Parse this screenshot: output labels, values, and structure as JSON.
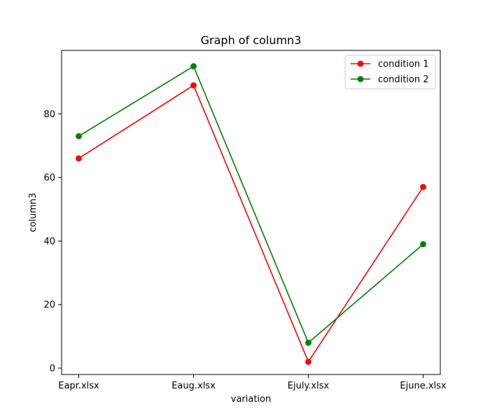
{
  "chart_data": {
    "type": "line",
    "title": "Graph of column3",
    "xlabel": "variation",
    "ylabel": "column3",
    "categories": [
      "Eapr.xlsx",
      "Eaug.xlsx",
      "Ejuly.xlsx",
      "Ejune.xlsx"
    ],
    "ylim": [
      -2,
      100
    ],
    "yticks": [
      0,
      20,
      40,
      60,
      80
    ],
    "grid": false,
    "legend_position": "top-right",
    "series": [
      {
        "name": "condition 1",
        "color": "#ff0000",
        "values": [
          66,
          89,
          2,
          57
        ]
      },
      {
        "name": "condition 2",
        "color": "#008000",
        "values": [
          73,
          95,
          8,
          39
        ]
      }
    ]
  }
}
